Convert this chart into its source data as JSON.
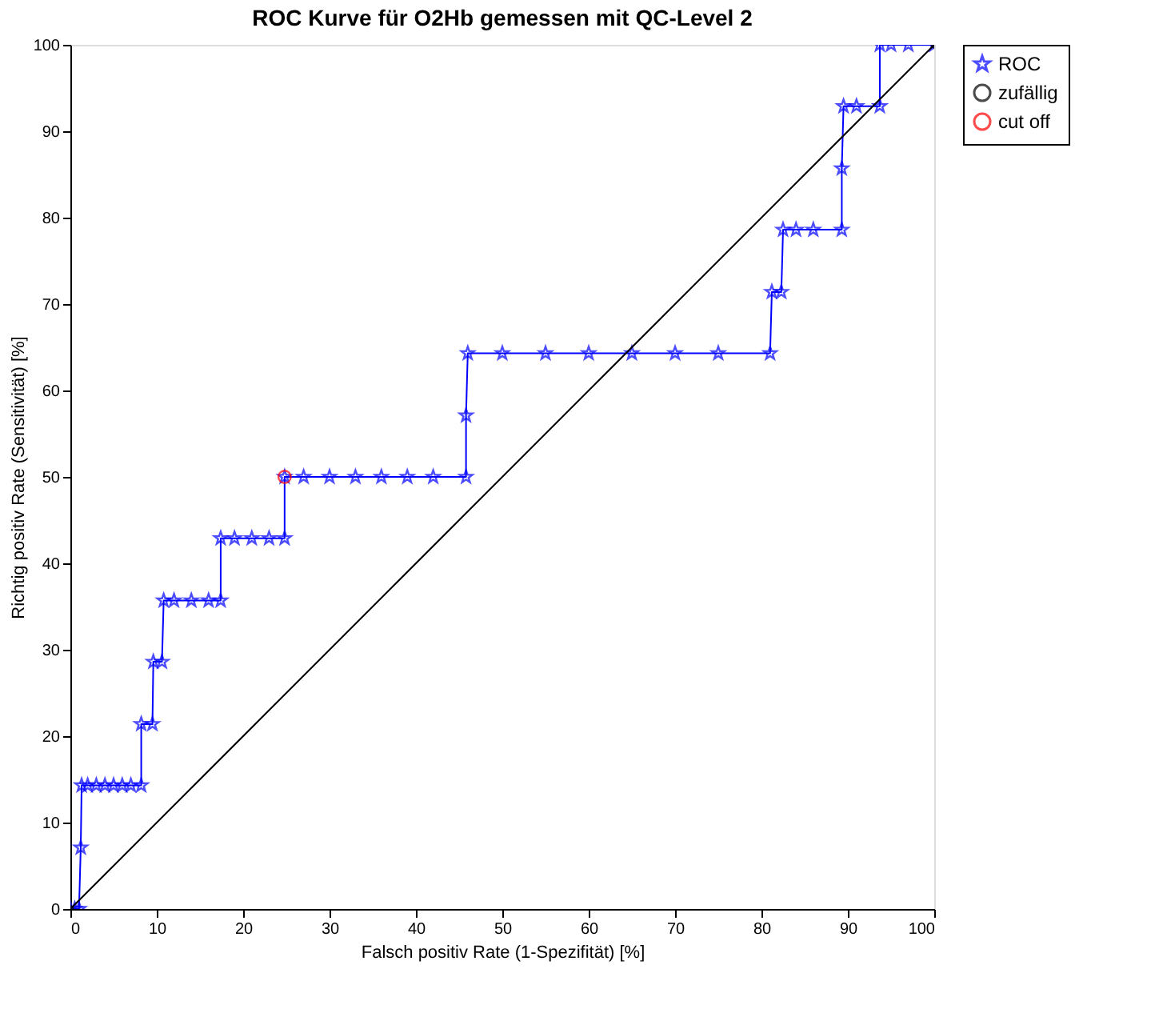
{
  "chart_data": {
    "type": "line",
    "title": "ROC Kurve für O2Hb gemessen mit QC-Level 2",
    "xlabel": "Falsch positiv Rate (1-Spezifität) [%]",
    "ylabel": "Richtig positiv Rate (Sensitivität) [%]",
    "xlim": [
      0,
      100
    ],
    "ylim": [
      0,
      100
    ],
    "xticks": [
      0,
      10,
      20,
      30,
      40,
      50,
      60,
      70,
      80,
      90,
      100
    ],
    "yticks": [
      0,
      10,
      20,
      30,
      40,
      50,
      60,
      70,
      80,
      90,
      100
    ],
    "grid": false,
    "legend": "top right",
    "series": [
      {
        "name": "ROC",
        "color": "#0000ff",
        "marker": "star",
        "x": [
          0,
          0.5,
          1,
          1.2,
          1.3,
          2,
          3,
          4,
          5,
          6,
          7,
          8.2,
          8.2,
          9.5,
          9.6,
          10.6,
          10.8,
          12,
          14,
          16,
          17.4,
          17.4,
          19,
          21,
          23,
          24.8,
          24.8,
          27,
          30,
          33,
          36,
          39,
          42,
          45.8,
          45.8,
          46,
          50,
          55,
          60,
          65,
          70,
          75,
          81,
          81.2,
          82.3,
          82.5,
          84,
          86,
          89.3,
          89.3,
          89.5,
          91,
          93.7,
          93.7,
          95,
          97,
          100
        ],
        "values": [
          0,
          0,
          0,
          7.1,
          14.3,
          14.3,
          14.3,
          14.3,
          14.3,
          14.3,
          14.3,
          14.3,
          21.4,
          21.4,
          28.6,
          28.6,
          35.7,
          35.7,
          35.7,
          35.7,
          35.7,
          42.9,
          42.9,
          42.9,
          42.9,
          42.9,
          50,
          50,
          50,
          50,
          50,
          50,
          50,
          50,
          57.1,
          64.3,
          64.3,
          64.3,
          64.3,
          64.3,
          64.3,
          64.3,
          64.3,
          71.4,
          71.4,
          78.6,
          78.6,
          78.6,
          78.6,
          85.7,
          92.9,
          92.9,
          92.9,
          100,
          100,
          100,
          100
        ]
      },
      {
        "name": "zufällig",
        "color": "#000000",
        "marker": "circle",
        "x": [
          0,
          100
        ],
        "values": [
          0,
          100
        ]
      },
      {
        "name": "cut off",
        "color": "#ff0000",
        "type": "scatter",
        "marker": "circle",
        "x": [
          24.8
        ],
        "values": [
          50
        ]
      }
    ]
  }
}
